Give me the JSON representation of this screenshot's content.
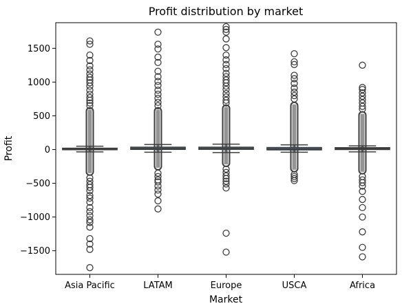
{
  "chart_data": {
    "type": "box",
    "title": "Profit distribution by market",
    "xlabel": "Market",
    "ylabel": "Profit",
    "ylim": [
      -1850,
      1880
    ],
    "yticks": [
      -1500,
      -1000,
      -500,
      0,
      500,
      1000,
      1500
    ],
    "ytick_labels": [
      "−1500",
      "−1000",
      "−500",
      "0",
      "500",
      "1000",
      "1500"
    ],
    "categories": [
      "Asia Pacific",
      "LATAM",
      "Europe",
      "USCA",
      "Africa"
    ],
    "box_color": "#4a72a8",
    "series": [
      {
        "category": "Asia Pacific",
        "q1": -3,
        "median": 10,
        "q3": 20,
        "whisker_low": -35,
        "whisker_high": 50,
        "dense_low": -380,
        "dense_high": 620,
        "outliers": [
          1610,
          1560,
          1400,
          1320,
          1240,
          1180,
          1120,
          1070,
          1030,
          990,
          940,
          880,
          820,
          770,
          730,
          690,
          650,
          -420,
          -470,
          -520,
          -560,
          -610,
          -680,
          -720,
          -780,
          -860,
          -920,
          -980,
          -1040,
          -1080,
          -1150,
          -1320,
          -1400,
          -1480,
          -1750
        ]
      },
      {
        "category": "LATAM",
        "q1": 2,
        "median": 15,
        "q3": 35,
        "whisker_low": -40,
        "whisker_high": 75,
        "dense_low": -300,
        "dense_high": 620,
        "outliers": [
          1740,
          1560,
          1490,
          1370,
          1290,
          1160,
          1080,
          1010,
          950,
          880,
          820,
          760,
          700,
          650,
          -350,
          -400,
          -450,
          -480,
          -540,
          -600,
          -660,
          -760,
          -880
        ]
      },
      {
        "category": "Europe",
        "q1": 3,
        "median": 15,
        "q3": 35,
        "whisker_low": -45,
        "whisker_high": 80,
        "dense_low": -250,
        "dense_high": 660,
        "outliers": [
          1820,
          1780,
          1740,
          1640,
          1510,
          1400,
          1330,
          1260,
          1200,
          1130,
          1080,
          1030,
          990,
          940,
          890,
          830,
          780,
          730,
          690,
          -290,
          -340,
          -390,
          -430,
          -470,
          -510,
          -570,
          -1240,
          -1520
        ]
      },
      {
        "category": "USCA",
        "q1": -5,
        "median": 8,
        "q3": 30,
        "whisker_low": -40,
        "whisker_high": 70,
        "dense_low": -330,
        "dense_high": 700,
        "outliers": [
          1420,
          1300,
          1260,
          1100,
          1050,
          980,
          910,
          850,
          800,
          750,
          -370,
          -400,
          -430,
          -460
        ]
      },
      {
        "category": "Africa",
        "q1": 0,
        "median": 12,
        "q3": 28,
        "whisker_low": -35,
        "whisker_high": 55,
        "dense_low": -360,
        "dense_high": 560,
        "outliers": [
          1250,
          920,
          890,
          840,
          790,
          740,
          690,
          640,
          600,
          -400,
          -450,
          -490,
          -540,
          -620,
          -740,
          -860,
          -1000,
          -1220,
          -1450,
          -1590
        ]
      }
    ]
  }
}
